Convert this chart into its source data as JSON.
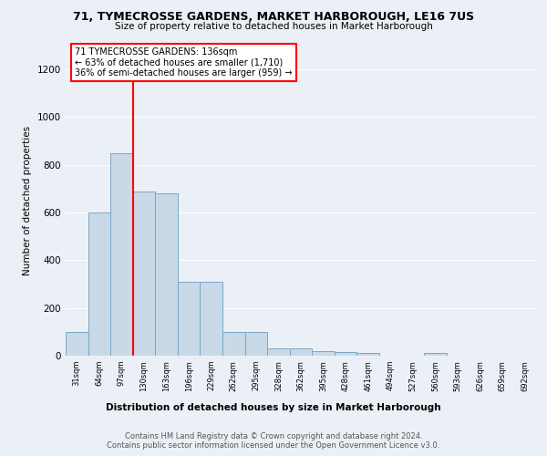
{
  "title1": "71, TYMECROSSE GARDENS, MARKET HARBOROUGH, LE16 7US",
  "title2": "Size of property relative to detached houses in Market Harborough",
  "xlabel": "Distribution of detached houses by size in Market Harborough",
  "ylabel": "Number of detached properties",
  "bin_labels": [
    "31sqm",
    "64sqm",
    "97sqm",
    "130sqm",
    "163sqm",
    "196sqm",
    "229sqm",
    "262sqm",
    "295sqm",
    "328sqm",
    "362sqm",
    "395sqm",
    "428sqm",
    "461sqm",
    "494sqm",
    "527sqm",
    "560sqm",
    "593sqm",
    "626sqm",
    "659sqm",
    "692sqm"
  ],
  "bar_heights": [
    100,
    600,
    850,
    690,
    680,
    310,
    310,
    100,
    100,
    30,
    30,
    20,
    15,
    10,
    0,
    0,
    10,
    0,
    0,
    0,
    0
  ],
  "bar_color": "#c9d9e8",
  "bar_edge_color": "#7aa7c7",
  "annotation_title": "71 TYMECROSSE GARDENS: 136sqm",
  "annotation_line1": "← 63% of detached houses are smaller (1,710)",
  "annotation_line2": "36% of semi-detached houses are larger (959) →",
  "footer1": "Contains HM Land Registry data © Crown copyright and database right 2024.",
  "footer2": "Contains public sector information licensed under the Open Government Licence v3.0.",
  "ylim": [
    0,
    1300
  ],
  "background_color": "#eaf0f6",
  "plot_background": "#eaf0f6"
}
